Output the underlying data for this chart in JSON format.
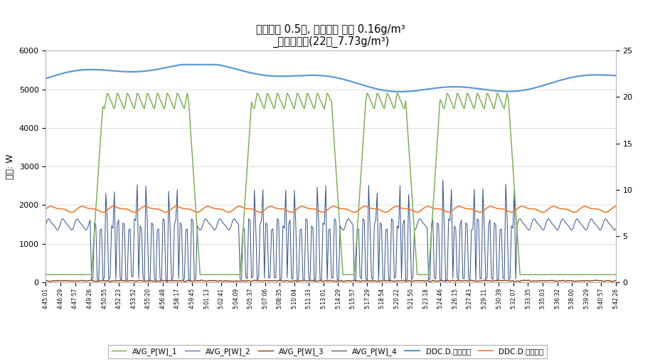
{
  "title_line1": "온도편차 0.5도, 절대습도 편차 0.16g/m³",
  "title_line2": "_목표온습도(22도_7.73g/m³)",
  "ylabel_left": "단위: W",
  "ylim_left": [
    0,
    6000
  ],
  "ylim_right": [
    0,
    25
  ],
  "yticks_left": [
    0,
    1000,
    2000,
    3000,
    4000,
    5000,
    6000
  ],
  "yticks_right": [
    0,
    5,
    10,
    15,
    20,
    25
  ],
  "colors": {
    "AVG_P1": "#70ad47",
    "AVG_P2": "#2e4d8a",
    "AVG_P3": "#843c0c",
    "AVG_P4": "#404040",
    "DDC_temp": "#5b9bd5",
    "DDC_hum": "#ed7d31"
  },
  "legend_labels": [
    "AVG_P[W]_1",
    "AVG_P[W]_2",
    "AVG_P[W]_3",
    "AVG_P[W]_4",
    "DDC.D.실내온도",
    "DDC.D.실내습도"
  ],
  "time_labels": [
    "4:45:01",
    "4:46:29",
    "4:47:57",
    "4:49:26",
    "4:50:55",
    "4:52:23",
    "4:53:52",
    "4:55:20",
    "4:56:48",
    "4:58:17",
    "4:59:45",
    "5:01:13",
    "5:02:41",
    "5:04:09",
    "5:05:37",
    "5:07:06",
    "5:08:35",
    "5:10:04",
    "5:11:33",
    "5:13:01",
    "5:14:29",
    "5:15:57",
    "5:17:29",
    "5:18:54",
    "5:20:22",
    "5:21:50",
    "5:23:18",
    "5:24:46",
    "5:26:15",
    "5:27:43",
    "5:29:11",
    "5:30:39",
    "5:32:07",
    "5:33:35",
    "5:35:03",
    "5:36:32",
    "5:38:00",
    "5:39:29",
    "5:40:57",
    "5:42:26"
  ],
  "n_points": 400,
  "background_color": "#ffffff",
  "grid_color": "#d9d9d9"
}
